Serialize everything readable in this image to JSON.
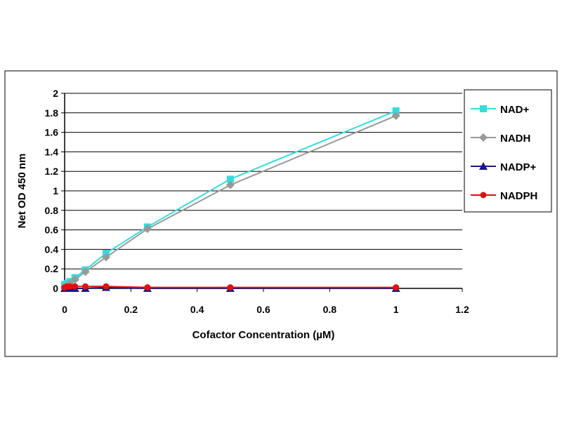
{
  "chart_data": {
    "type": "line",
    "title": "",
    "xlabel": "Cofactor Concentration (µM)",
    "ylabel": "Net OD 450 nm",
    "xlim": [
      0,
      1.2
    ],
    "ylim": [
      0,
      2
    ],
    "xticks": [
      "0",
      "0.2",
      "0.4",
      "0.6",
      "0.8",
      "1",
      "1.2"
    ],
    "yticks": [
      "0",
      "0.2",
      "0.4",
      "0.6",
      "0.8",
      "1",
      "1.2",
      "1.4",
      "1.6",
      "1.8",
      "2"
    ],
    "grid": "horizontal",
    "legend_position": "right",
    "x": [
      0,
      0.0078,
      0.0156,
      0.03125,
      0.0625,
      0.125,
      0.25,
      0.5,
      1
    ],
    "series": [
      {
        "name": "NAD+",
        "color": "#33dddd",
        "marker": "square",
        "values": [
          0.04,
          0.05,
          0.07,
          0.11,
          0.19,
          0.36,
          0.63,
          1.12,
          1.82
        ]
      },
      {
        "name": "NADH",
        "color": "#999999",
        "marker": "diamond",
        "values": [
          0.02,
          0.03,
          0.05,
          0.09,
          0.17,
          0.32,
          0.61,
          1.06,
          1.77
        ]
      },
      {
        "name": "NADP+",
        "color": "#1a1a80",
        "marker": "triangle",
        "values": [
          0,
          0,
          0,
          0,
          0,
          0.01,
          0,
          0,
          0
        ]
      },
      {
        "name": "NADPH",
        "color": "#dd1111",
        "marker": "circle",
        "values": [
          0.01,
          0.02,
          0.02,
          0.02,
          0.02,
          0.02,
          0.01,
          0.01,
          0.01
        ]
      }
    ]
  }
}
